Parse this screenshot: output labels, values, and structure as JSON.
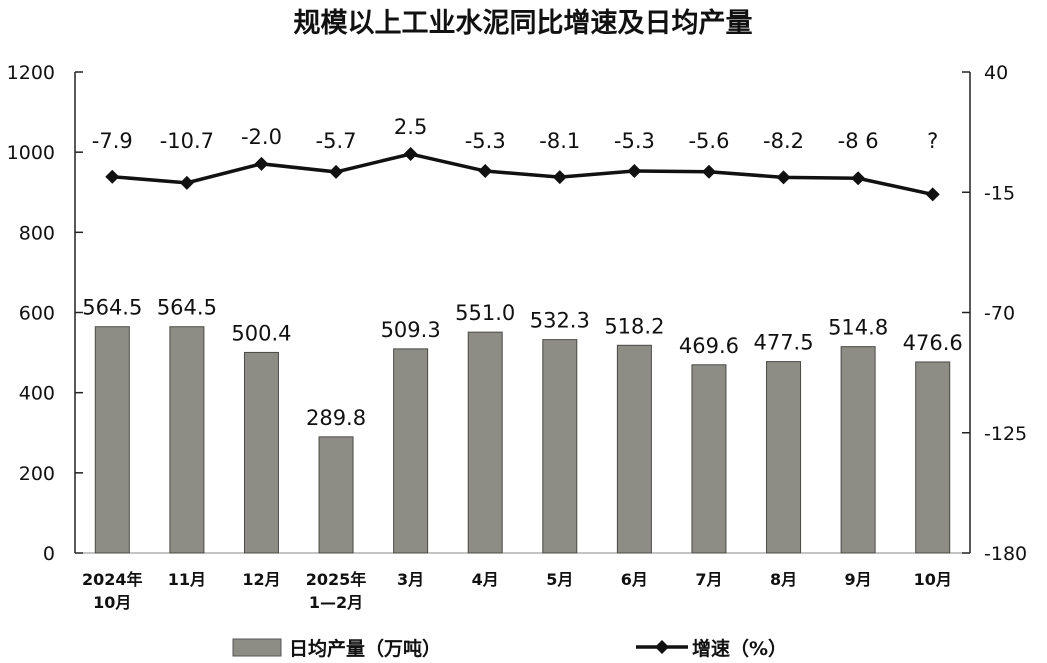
{
  "chart_data": {
    "type": "bar",
    "title": "规模以上工业水泥同比增速及日均产量",
    "categories": [
      [
        "2024年",
        "10月"
      ],
      [
        "11月"
      ],
      [
        "12月"
      ],
      [
        "2025年",
        "1—2月"
      ],
      [
        "3月"
      ],
      [
        "4月"
      ],
      [
        "5月"
      ],
      [
        "6月"
      ],
      [
        "7月"
      ],
      [
        "8月"
      ],
      [
        "9月"
      ],
      [
        "10月"
      ]
    ],
    "series": [
      {
        "name": "日均产量（万吨）",
        "type": "bar",
        "axis": "left",
        "values": [
          564.5,
          564.5,
          500.4,
          289.8,
          509.3,
          551.0,
          532.3,
          518.2,
          469.6,
          477.5,
          514.8,
          476.6
        ],
        "labels": [
          "564.5",
          "564.5",
          "500.4",
          "289.8",
          "509.3",
          "551.0",
          "532.3",
          "518.2",
          "469.6",
          "477.5",
          "514.8",
          "476.6"
        ]
      },
      {
        "name": "增速（%）",
        "type": "line",
        "axis": "right",
        "values": [
          -7.9,
          -10.7,
          -2.0,
          -5.7,
          2.5,
          -5.3,
          -8.1,
          -5.3,
          -5.6,
          -8.2,
          -8.6,
          -16
        ],
        "labels": [
          "-7.9",
          "-10.7",
          "-2.0",
          "-5.7",
          "2.5",
          "-5.3",
          "-8.1",
          "-5.3",
          "-5.6",
          "-8.2",
          "-8 6",
          "?"
        ]
      }
    ],
    "ylim": [
      0,
      1200
    ],
    "yticks": [
      "0",
      "200",
      "400",
      "600",
      "800",
      "1000",
      "1200"
    ],
    "y2lim": [
      -180,
      40
    ],
    "y2ticks": [
      "-180",
      "-125",
      "-70",
      "-15",
      "40"
    ],
    "grid": false,
    "legend_position": "bottom"
  }
}
